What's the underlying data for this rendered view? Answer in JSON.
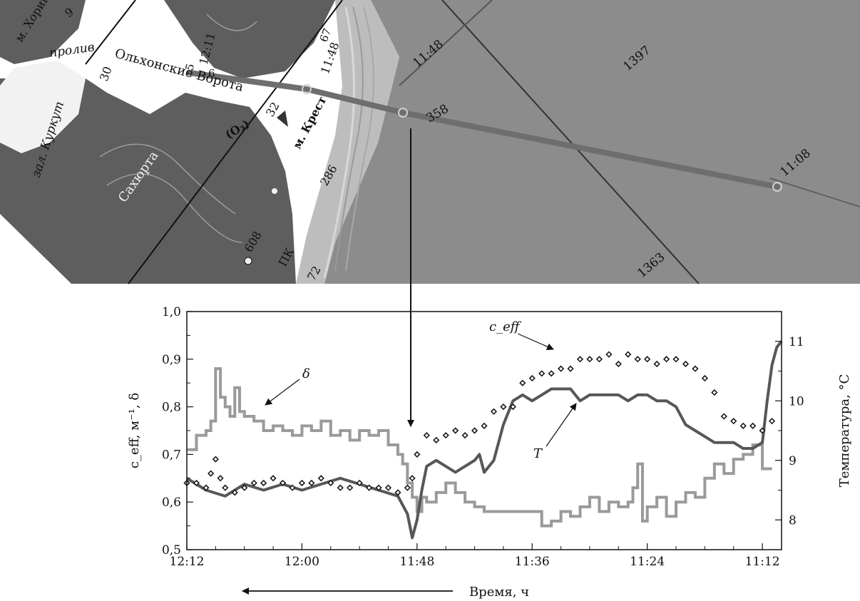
{
  "map": {
    "labels": {
      "cape_khorin": "м. Хорин",
      "strait": "пролив",
      "olkhon_gate": "Ольхонские Ворота",
      "bay_kurkut": "зал. Куркут",
      "sakhyurta": "Сахюрта",
      "o3": "(O₃)",
      "cape_krest": "м. Крест",
      "pk": "ПК"
    },
    "depth_numbers": [
      "9",
      "30",
      "6",
      "5",
      "32",
      "286",
      "608",
      "72",
      "358",
      "1397",
      "1363",
      "67"
    ],
    "time_marks": [
      "12:11",
      "11:48",
      "11:48",
      "11:08"
    ],
    "colors": {
      "land": "#5a5a5a",
      "lake": "#8a8a8a",
      "shore": "#c8c8c8",
      "track": "#6e6e6e"
    }
  },
  "chart_data": {
    "type": "line",
    "xlabel": "Время, ч",
    "ylabel_left": "c_eff, м⁻¹, δ",
    "ylabel_right": "Температура, °C",
    "x_ticks": [
      "12:12",
      "12:00",
      "11:48",
      "11:36",
      "11:24",
      "11:12"
    ],
    "x_tick_minutes": [
      732,
      720,
      708,
      696,
      684,
      672
    ],
    "x_range": [
      732,
      670
    ],
    "x_reversed": true,
    "ylim_left": [
      0.5,
      1.0
    ],
    "ylim_right": [
      7.5,
      11.5
    ],
    "y_ticks_left": [
      "0,5",
      "0,6",
      "0,7",
      "0,8",
      "0,9",
      "1,0"
    ],
    "y_ticks_right": [
      "8",
      "9",
      "10",
      "11"
    ],
    "annotations": {
      "delta": "δ",
      "ceff": "c_eff",
      "T": "T"
    },
    "colors": {
      "delta": "#9a9a9a",
      "T": "#575757",
      "ceff": "#1a1a1a"
    },
    "series": [
      {
        "name": "δ",
        "axis": "left",
        "style": "step",
        "x": [
          732,
          731,
          730,
          729.5,
          729,
          728.5,
          728,
          727.5,
          727,
          726.5,
          726,
          725,
          724,
          723,
          722,
          721,
          720,
          719,
          718,
          717,
          716,
          715,
          714,
          713,
          712,
          711,
          710,
          709.5,
          709,
          708.5,
          708,
          707.5,
          707,
          706,
          705,
          704,
          703,
          702,
          701,
          700,
          699,
          698,
          697,
          696,
          695,
          694,
          693,
          692,
          691,
          690,
          689,
          688,
          687,
          686,
          685.5,
          685,
          684.5,
          684,
          683,
          682,
          681,
          680,
          679,
          678,
          677,
          676,
          675,
          674,
          673,
          672,
          671
        ],
        "y": [
          0.71,
          0.74,
          0.75,
          0.77,
          0.88,
          0.82,
          0.8,
          0.78,
          0.84,
          0.79,
          0.78,
          0.77,
          0.75,
          0.76,
          0.75,
          0.74,
          0.76,
          0.75,
          0.77,
          0.74,
          0.75,
          0.73,
          0.75,
          0.74,
          0.75,
          0.72,
          0.7,
          0.68,
          0.64,
          0.61,
          0.58,
          0.61,
          0.6,
          0.62,
          0.64,
          0.62,
          0.6,
          0.59,
          0.58,
          0.58,
          0.58,
          0.58,
          0.58,
          0.58,
          0.55,
          0.56,
          0.58,
          0.57,
          0.59,
          0.61,
          0.58,
          0.6,
          0.59,
          0.6,
          0.63,
          0.68,
          0.56,
          0.59,
          0.61,
          0.57,
          0.6,
          0.62,
          0.61,
          0.65,
          0.68,
          0.66,
          0.69,
          0.7,
          0.72,
          0.67,
          0.67
        ]
      },
      {
        "name": "T",
        "axis": "right",
        "style": "line",
        "x": [
          732,
          730,
          728,
          726,
          724,
          722,
          720,
          718,
          716,
          714,
          712,
          710,
          709,
          708.5,
          708,
          707.5,
          707,
          706,
          705,
          704,
          703,
          702,
          701.5,
          701,
          700,
          699,
          698,
          697,
          696,
          695,
          694,
          693,
          692,
          691,
          690,
          689,
          688,
          687,
          686,
          685,
          684,
          683,
          682,
          681,
          680,
          679,
          678,
          677,
          676,
          675,
          674,
          673,
          672,
          671.5,
          671,
          670.5,
          670
        ],
        "y": [
          8.7,
          8.5,
          8.4,
          8.6,
          8.5,
          8.6,
          8.5,
          8.6,
          8.7,
          8.6,
          8.5,
          8.4,
          8.1,
          7.7,
          8.0,
          8.5,
          8.9,
          9.0,
          8.9,
          8.8,
          8.9,
          9.0,
          9.1,
          8.8,
          9.0,
          9.6,
          10.0,
          10.1,
          10.0,
          10.1,
          10.2,
          10.2,
          10.2,
          10.0,
          10.1,
          10.1,
          10.1,
          10.1,
          10.0,
          10.1,
          10.1,
          10.0,
          10.0,
          9.9,
          9.6,
          9.5,
          9.4,
          9.3,
          9.3,
          9.3,
          9.2,
          9.2,
          9.3,
          10.0,
          10.6,
          10.9,
          11.0
        ]
      },
      {
        "name": "c_eff",
        "axis": "left",
        "style": "markers",
        "x": [
          732,
          731,
          730,
          729.5,
          729,
          728.5,
          728,
          727,
          726,
          725,
          724,
          723,
          722,
          721,
          720,
          719,
          718,
          717,
          716,
          715,
          714,
          713,
          712,
          711,
          710,
          709,
          708.5,
          708,
          707,
          706,
          705,
          704,
          703,
          702,
          701,
          700,
          699,
          698,
          697,
          696,
          695,
          694,
          693,
          692,
          691,
          690,
          689,
          688,
          687,
          686,
          685,
          684,
          683,
          682,
          681,
          680,
          679,
          678,
          677,
          676,
          675,
          674,
          673,
          672,
          671
        ],
        "y": [
          0.64,
          0.64,
          0.63,
          0.66,
          0.69,
          0.65,
          0.63,
          0.62,
          0.63,
          0.64,
          0.64,
          0.65,
          0.64,
          0.63,
          0.64,
          0.64,
          0.65,
          0.64,
          0.63,
          0.63,
          0.64,
          0.63,
          0.63,
          0.63,
          0.62,
          0.63,
          0.65,
          0.7,
          0.74,
          0.73,
          0.74,
          0.75,
          0.74,
          0.75,
          0.76,
          0.79,
          0.8,
          0.8,
          0.85,
          0.86,
          0.87,
          0.87,
          0.88,
          0.88,
          0.9,
          0.9,
          0.9,
          0.91,
          0.89,
          0.91,
          0.9,
          0.9,
          0.89,
          0.9,
          0.9,
          0.89,
          0.88,
          0.86,
          0.83,
          0.78,
          0.77,
          0.76,
          0.76,
          0.75,
          0.77
        ]
      }
    ]
  }
}
